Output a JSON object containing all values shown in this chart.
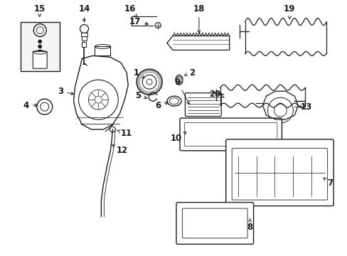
{
  "bg_color": "#ffffff",
  "line_color": "#1a1a1a",
  "fig_width": 4.89,
  "fig_height": 3.6,
  "dpi": 100,
  "label_fontsize": 8.5,
  "label_color": "#1a1a1a"
}
